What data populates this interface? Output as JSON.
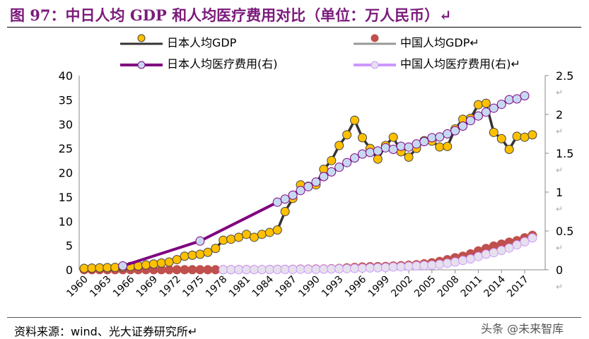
{
  "title": "图 97：中日人均 GDP 和人均医疗费用对比（单位：万人民币）↵",
  "footer": "资料来源：wind、光大证券研究所↵",
  "watermark": "头条 @未来智库",
  "chart_data": {
    "type": "line",
    "x_ticks": [
      "1960",
      "1963",
      "1966",
      "1969",
      "1972",
      "1975",
      "1978",
      "1981",
      "1984",
      "1987",
      "1990",
      "1993",
      "1996",
      "1999",
      "2002",
      "2005",
      "2008",
      "2011",
      "2014",
      "2017"
    ],
    "left_ticks": [
      "0",
      "5",
      "10",
      "15",
      "20",
      "25",
      "30",
      "35",
      "40"
    ],
    "right_ticks": [
      "0",
      "0.5",
      "1",
      "1.5",
      "2",
      "2.5"
    ],
    "ylim_left": [
      0,
      40
    ],
    "ylim_right": [
      0,
      2.5
    ],
    "xlim": [
      1960,
      2019
    ],
    "legend_position": "top",
    "series": [
      {
        "name": "日本人均GDP",
        "axis": "left",
        "color": "#333333",
        "marker": "#ffc000",
        "x_start": 1960,
        "values": [
          0.3,
          0.35,
          0.4,
          0.45,
          0.5,
          0.55,
          0.7,
          0.8,
          1.0,
          1.2,
          1.4,
          1.6,
          2.1,
          2.8,
          3.0,
          3.2,
          3.6,
          4.4,
          6.1,
          6.3,
          6.7,
          7.3,
          6.7,
          7.3,
          7.7,
          8.2,
          12,
          14.7,
          17.5,
          17.2,
          17.5,
          20.7,
          22.5,
          25.6,
          27.8,
          30.8,
          27.2,
          25,
          22.8,
          25.6,
          27.3,
          24.3,
          23.2,
          25,
          26.6,
          26.5,
          25.3,
          25.4,
          29,
          31,
          31.2,
          34,
          34.3,
          28.3,
          27,
          24.8,
          27.5,
          27.3,
          27.8,
          null
        ]
      },
      {
        "name": "中国人均GDP",
        "axis": "left",
        "color": "#999999",
        "marker": "#c0504d",
        "x_start": 1960,
        "values": [
          0.01,
          0.01,
          0.01,
          0.01,
          0.01,
          0.01,
          0.01,
          0.01,
          0.01,
          0.01,
          0.01,
          0.01,
          0.01,
          0.01,
          0.01,
          0.01,
          0.01,
          0.01,
          0.04,
          0.04,
          0.05,
          0.05,
          0.05,
          0.06,
          0.07,
          0.09,
          0.1,
          0.11,
          0.14,
          0.15,
          0.16,
          0.19,
          0.23,
          0.3,
          0.4,
          0.5,
          0.58,
          0.63,
          0.65,
          0.69,
          0.79,
          0.86,
          0.94,
          1.05,
          1.24,
          1.45,
          1.72,
          2.1,
          2.5,
          2.8,
          3.3,
          3.9,
          4.4,
          4.9,
          5.3,
          5.7,
          6.0,
          6.6,
          7.1
        ]
      },
      {
        "name": "日本人均医疗费用(右)",
        "axis": "right",
        "color": "#7f007f",
        "marker": "#c6d9f1",
        "x": [
          1965,
          1975,
          1985,
          1986,
          1987,
          1988,
          1989,
          1990,
          1991,
          1992,
          1993,
          1994,
          1995,
          1996,
          1997,
          1998,
          1999,
          2000,
          2001,
          2002,
          2003,
          2004,
          2005,
          2006,
          2007,
          2008,
          2009,
          2010,
          2011,
          2012,
          2013,
          2014,
          2015,
          2016,
          2017,
          2018
        ],
        "values": [
          0.05,
          0.37,
          0.87,
          0.91,
          0.96,
          1.02,
          1.07,
          1.13,
          1.2,
          1.26,
          1.32,
          1.38,
          1.44,
          1.49,
          1.51,
          1.53,
          1.57,
          1.55,
          1.59,
          1.58,
          1.62,
          1.65,
          1.7,
          1.71,
          1.75,
          1.79,
          1.85,
          1.92,
          1.98,
          2.03,
          2.08,
          2.13,
          2.19,
          2.2,
          2.24,
          null
        ]
      },
      {
        "name": "中国人均医疗费用(右)",
        "axis": "right",
        "color": "#cc99ff",
        "marker": "#e6e0ec",
        "x_start": 1978,
        "values": [
          0.001,
          0.002,
          0.002,
          0.002,
          0.003,
          0.003,
          0.003,
          0.004,
          0.004,
          0.005,
          0.006,
          0.006,
          0.006,
          0.008,
          0.01,
          0.012,
          0.014,
          0.018,
          0.021,
          0.024,
          0.026,
          0.029,
          0.036,
          0.039,
          0.044,
          0.05,
          0.056,
          0.06,
          0.07,
          0.085,
          0.1,
          0.12,
          0.14,
          0.17,
          0.2,
          0.22,
          0.25,
          0.28,
          0.32,
          0.36,
          0.41
        ]
      }
    ]
  }
}
